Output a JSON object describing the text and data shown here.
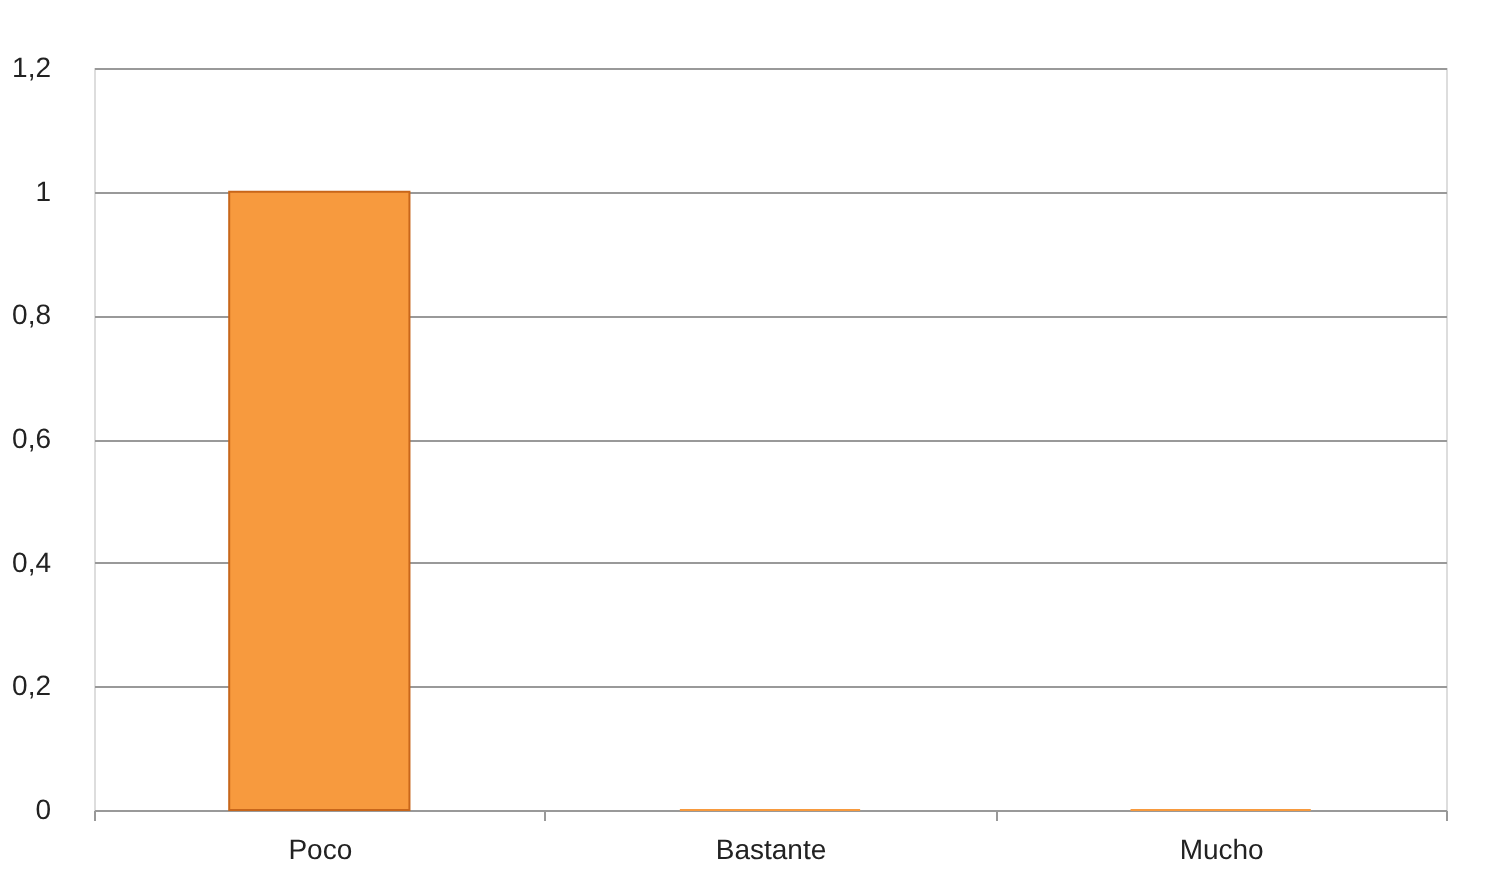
{
  "chart_data": {
    "type": "bar",
    "categories": [
      "Poco",
      "Bastante",
      "Mucho"
    ],
    "values": [
      1,
      0,
      0
    ],
    "color": "#f79a3e",
    "ylim": [
      0,
      1.2
    ],
    "yticks": [
      0,
      {
        "value": 0.2,
        "label": "0,2"
      },
      {
        "value": 0.4,
        "label": "0,4"
      },
      {
        "value": 0.6,
        "label": "0,6"
      },
      {
        "value": 0.8,
        "label": "0,8"
      },
      1,
      {
        "value": 1.2,
        "label": "1,2"
      }
    ],
    "grid": "y"
  }
}
